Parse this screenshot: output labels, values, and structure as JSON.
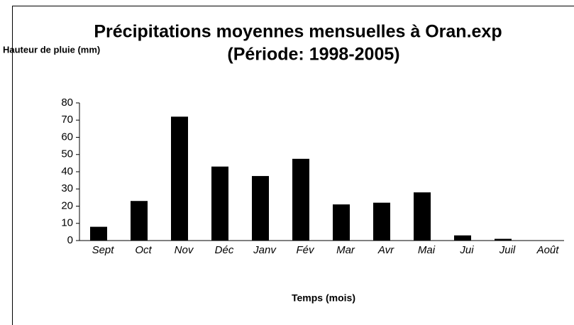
{
  "chart_data": {
    "type": "bar",
    "title": "Précipitations moyennes mensuelles à Oran.exp",
    "subtitle": "(Période: 1998-2005)",
    "y_label": "Hauteur de pluie (mm)",
    "x_label": "Temps (mois)",
    "categories": [
      "Sept",
      "Oct",
      "Nov",
      "Déc",
      "Janv",
      "Fév",
      "Mar",
      "Avr",
      "Mai",
      "Jui",
      "Juil",
      "Août"
    ],
    "values": [
      8,
      23,
      72,
      43,
      37.5,
      47.5,
      21,
      22,
      28,
      3,
      1,
      0
    ],
    "color": "#000000",
    "ylim": [
      0,
      80
    ],
    "yticks": [
      0,
      10,
      20,
      30,
      40,
      50,
      60,
      70,
      80
    ]
  }
}
